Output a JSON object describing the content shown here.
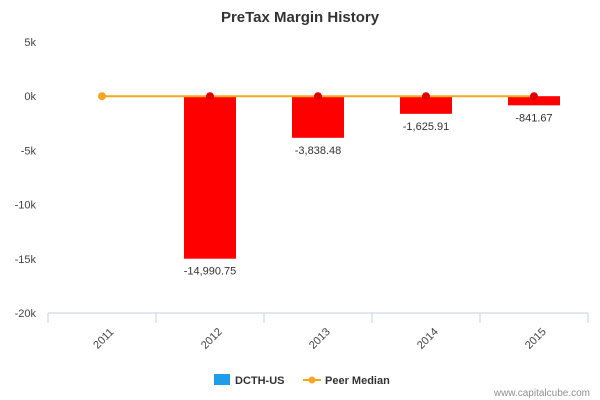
{
  "chart_data": {
    "type": "bar",
    "title": "PreTax Margin History",
    "categories": [
      "2011",
      "2012",
      "2013",
      "2014",
      "2015"
    ],
    "series": [
      {
        "name": "DCTH-US",
        "kind": "bar",
        "values": [
          null,
          -14990.75,
          -3838.48,
          -1625.91,
          -841.67
        ],
        "data_labels": [
          "",
          "-14,990.75",
          "-3,838.48",
          "-1,625.91",
          "-841.67"
        ],
        "color": "#ff0000",
        "legend_color": "#1e9ee8"
      },
      {
        "name": "Peer Median",
        "kind": "line",
        "values": [
          0,
          0,
          0,
          0,
          0
        ],
        "color": "#f5a623",
        "marker_colors": [
          "#f5a623",
          "#e00000",
          "#e00000",
          "#e00000",
          "#e00000"
        ]
      }
    ],
    "ylim": [
      -20000,
      5000
    ],
    "yticks": [
      5000,
      0,
      -5000,
      -10000,
      -15000,
      -20000
    ],
    "ytick_labels": [
      "5k",
      "0k",
      "-5k",
      "-10k",
      "-15k",
      "-20k"
    ],
    "xlabel": "",
    "ylabel": "",
    "legend_position": "bottom-center",
    "grid": false
  },
  "credit": "www.capitalcube.com"
}
